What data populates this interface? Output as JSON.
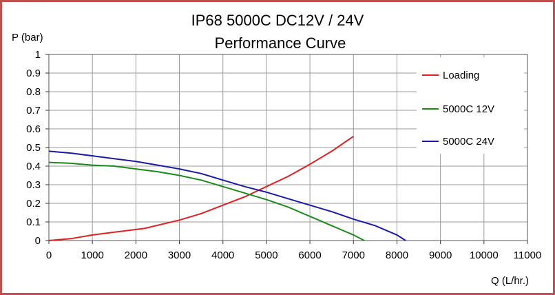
{
  "chart_data": {
    "type": "line",
    "title": "IP68  5000C DC12V / 24V",
    "subtitle": "Performance Curve",
    "xlabel": "Q (L/hr.)",
    "ylabel": "P (bar)",
    "xlim": [
      0,
      11000
    ],
    "ylim": [
      0,
      1
    ],
    "x_ticks": [
      0,
      1000,
      2000,
      3000,
      4000,
      5000,
      6000,
      7000,
      8000,
      9000,
      10000,
      11000
    ],
    "y_ticks": [
      0,
      0.1,
      0.2,
      0.3,
      0.4,
      0.5,
      0.6,
      0.7,
      0.8,
      0.9,
      1
    ],
    "y_tick_labels": [
      "0",
      "0.1",
      "0.2",
      "0.3",
      "0.4",
      "0.5",
      "0.6",
      "0.7",
      "0.8",
      "0.9",
      "1"
    ],
    "grid": true,
    "legend_position": "right",
    "series": [
      {
        "name": "Loading",
        "color": "#e02020",
        "points": [
          [
            0,
            0.0
          ],
          [
            500,
            0.01
          ],
          [
            1000,
            0.03
          ],
          [
            1500,
            0.045
          ],
          [
            2200,
            0.065
          ],
          [
            3000,
            0.11
          ],
          [
            3500,
            0.145
          ],
          [
            4000,
            0.19
          ],
          [
            4500,
            0.235
          ],
          [
            5000,
            0.29
          ],
          [
            5500,
            0.345
          ],
          [
            6000,
            0.41
          ],
          [
            6500,
            0.48
          ],
          [
            7000,
            0.56
          ]
        ]
      },
      {
        "name": "5000C 12V",
        "color": "#1a8a1a",
        "points": [
          [
            0,
            0.42
          ],
          [
            500,
            0.415
          ],
          [
            1000,
            0.405
          ],
          [
            1500,
            0.4
          ],
          [
            2000,
            0.385
          ],
          [
            2500,
            0.37
          ],
          [
            3000,
            0.35
          ],
          [
            3500,
            0.325
          ],
          [
            4000,
            0.29
          ],
          [
            4500,
            0.255
          ],
          [
            5000,
            0.22
          ],
          [
            5500,
            0.18
          ],
          [
            6000,
            0.13
          ],
          [
            6500,
            0.08
          ],
          [
            7000,
            0.03
          ],
          [
            7250,
            0.0
          ]
        ]
      },
      {
        "name": "5000C 24V",
        "color": "#1a1aa8",
        "points": [
          [
            0,
            0.48
          ],
          [
            500,
            0.47
          ],
          [
            1000,
            0.455
          ],
          [
            1500,
            0.44
          ],
          [
            2000,
            0.425
          ],
          [
            2500,
            0.405
          ],
          [
            3000,
            0.385
          ],
          [
            3500,
            0.36
          ],
          [
            4000,
            0.325
          ],
          [
            4500,
            0.29
          ],
          [
            5000,
            0.26
          ],
          [
            5500,
            0.225
          ],
          [
            6000,
            0.19
          ],
          [
            6500,
            0.155
          ],
          [
            7000,
            0.115
          ],
          [
            7500,
            0.08
          ],
          [
            8000,
            0.03
          ],
          [
            8200,
            0.0
          ]
        ]
      }
    ]
  }
}
